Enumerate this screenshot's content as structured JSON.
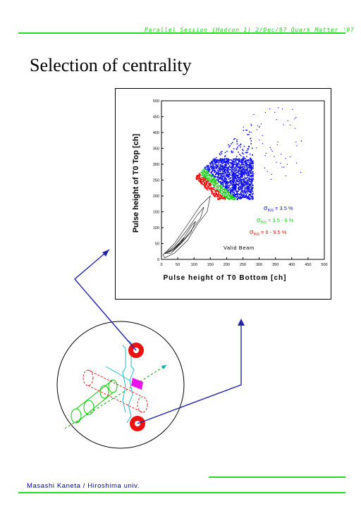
{
  "header": {
    "session": "Parallel Session (Hadron 1) 2/Dec/97 Quark Matter '97"
  },
  "slide": {
    "title": "Selection of centrality"
  },
  "footer": {
    "author": "Masashi Kaneta / Hiroshima univ."
  },
  "chart_data": {
    "type": "scatter",
    "xlabel": "Pulse height of T0 Bottom [ch]",
    "ylabel": "Pulse height of T0 Top [ch]",
    "xlim": [
      0,
      500
    ],
    "ylim": [
      0,
      500
    ],
    "xticks": [
      0,
      50,
      100,
      150,
      200,
      250,
      300,
      350,
      400,
      450,
      500
    ],
    "yticks": [
      0,
      50,
      100,
      150,
      200,
      250,
      300,
      350,
      400,
      450,
      500
    ],
    "annotation": "Valid Beam",
    "series": [
      {
        "label_sym": "σ",
        "label_sub": "INS",
        "label_rest": " = 3.5 %",
        "color": "#1010ee"
      },
      {
        "label_sym": "σ",
        "label_sub": "INS",
        "label_rest": " = 3.5 - 6 %",
        "color": "#22cc22"
      },
      {
        "label_sym": "σ",
        "label_sub": "INS",
        "label_rest": " = 6 - 9.5 %",
        "color": "#ee1111"
      }
    ]
  },
  "colors": {
    "accent_green": "#22dd22",
    "arrow_blue": "#2222aa"
  }
}
